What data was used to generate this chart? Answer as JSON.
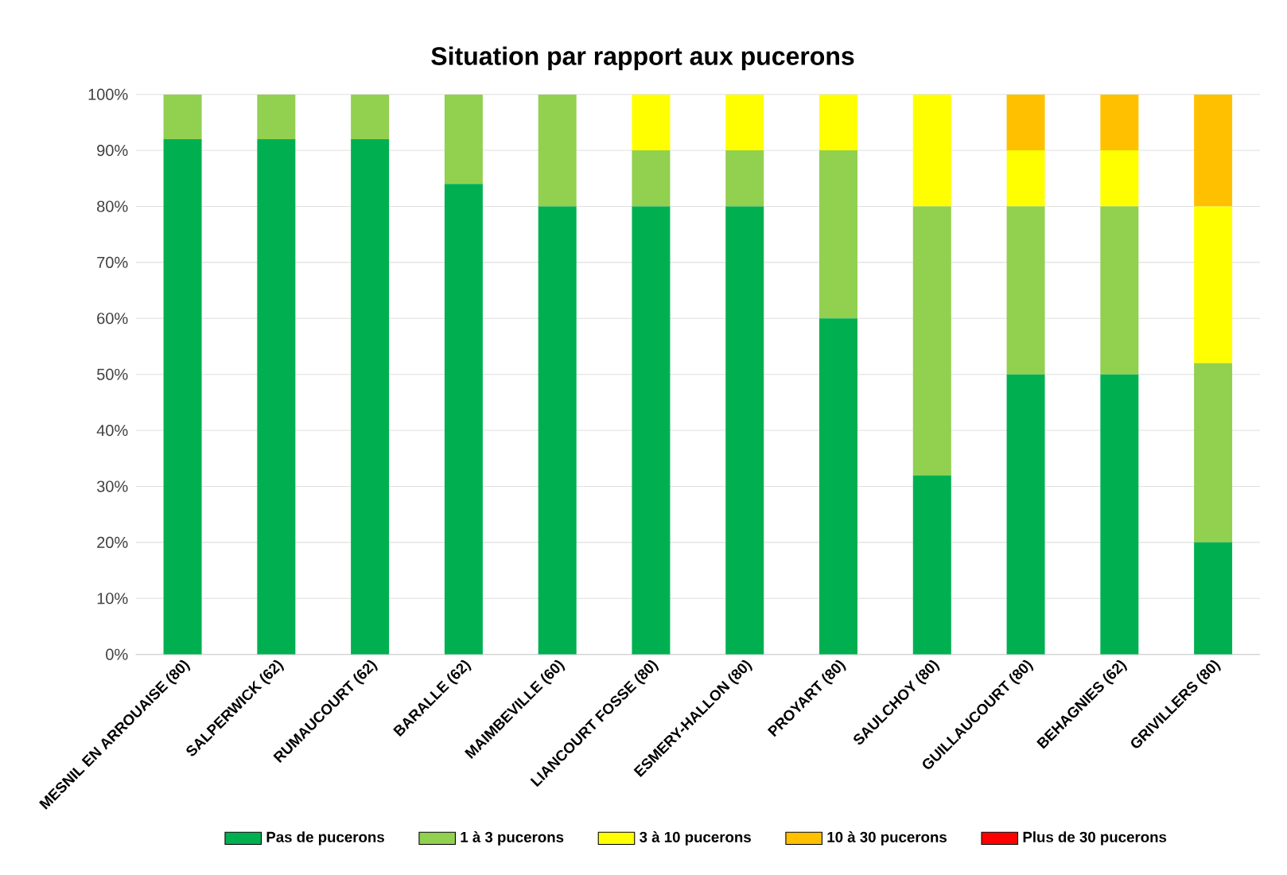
{
  "chart_data": {
    "type": "bar",
    "stacked": true,
    "title": "Situation par rapport aux pucerons",
    "categories": [
      "MESNIL EN ARROUAISE (80)",
      "SALPERWICK (62)",
      "RUMAUCOURT (62)",
      "BARALLE (62)",
      "MAIMBEVILLE (60)",
      "LIANCOURT FOSSE (80)",
      "ESMERY-HALLON (80)",
      "PROYART (80)",
      "SAULCHOY (80)",
      "GUILLAUCOURT (80)",
      "BEHAGNIES (62)",
      "GRIVILLERS (80)"
    ],
    "series": [
      {
        "name": "Pas de pucerons",
        "color": "#00b050",
        "values": [
          92,
          92,
          92,
          84,
          80,
          80,
          80,
          60,
          32,
          50,
          50,
          20
        ]
      },
      {
        "name": "1 à 3 pucerons",
        "color": "#92d050",
        "values": [
          8,
          8,
          8,
          16,
          20,
          10,
          10,
          30,
          48,
          30,
          30,
          32
        ]
      },
      {
        "name": "3 à 10 pucerons",
        "color": "#ffff00",
        "values": [
          0,
          0,
          0,
          0,
          0,
          10,
          10,
          10,
          20,
          10,
          10,
          28
        ]
      },
      {
        "name": "10 à 30 pucerons",
        "color": "#ffc000",
        "values": [
          0,
          0,
          0,
          0,
          0,
          0,
          0,
          0,
          0,
          10,
          10,
          20
        ]
      },
      {
        "name": "Plus de 30 pucerons",
        "color": "#ff0000",
        "values": [
          0,
          0,
          0,
          0,
          0,
          0,
          0,
          0,
          0,
          0,
          0,
          0
        ]
      }
    ],
    "ylim": [
      0,
      100
    ],
    "yticks": [
      {
        "value": 0,
        "label": "0%"
      },
      {
        "value": 10,
        "label": "10%"
      },
      {
        "value": 20,
        "label": "20%"
      },
      {
        "value": 30,
        "label": "30%"
      },
      {
        "value": 40,
        "label": "40%"
      },
      {
        "value": 50,
        "label": "50%"
      },
      {
        "value": 60,
        "label": "60%"
      },
      {
        "value": 70,
        "label": "70%"
      },
      {
        "value": 80,
        "label": "80%"
      },
      {
        "value": 90,
        "label": "90%"
      },
      {
        "value": 100,
        "label": "100%"
      }
    ],
    "grid": "y",
    "legend": "bottom"
  }
}
